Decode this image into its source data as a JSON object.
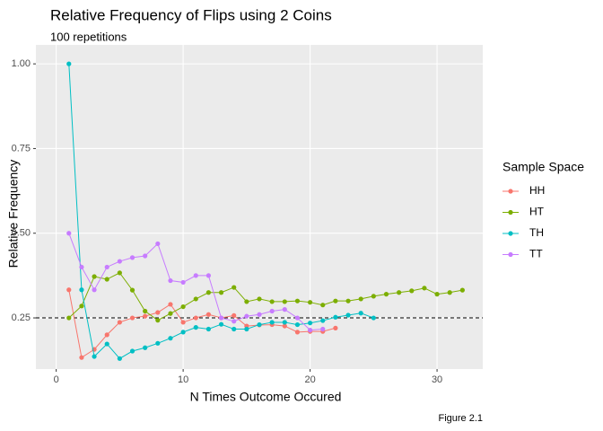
{
  "chart_data": {
    "type": "line",
    "title": "Relative Frequency of Flips using 2 Coins",
    "subtitle": "100 repetitions",
    "x_label": "N Times Outcome Occured",
    "y_label": "Relative Frequency",
    "caption": "Figure 2.1",
    "legend_title": "Sample Space",
    "legend": "right",
    "grid": true,
    "hline": 0.25,
    "xlim": [
      -1.6,
      33.6
    ],
    "ylim": [
      0.099,
      1.056
    ],
    "xticks": [
      0,
      10,
      20,
      30
    ],
    "yticks": [
      {
        "value": 0.25,
        "label": "0.25"
      },
      {
        "value": 0.5,
        "label": "0.50"
      },
      {
        "value": 0.75,
        "label": "0.75"
      },
      {
        "value": 1.0,
        "label": "1.00"
      }
    ],
    "series": [
      {
        "name": "HH",
        "color": "#F8766D",
        "x": [
          1,
          2,
          3,
          4,
          5,
          6,
          7,
          8,
          9,
          10,
          11,
          12,
          13,
          14,
          15,
          16,
          17,
          18,
          19,
          20,
          21,
          22
        ],
        "values": [
          0.333,
          0.133,
          0.157,
          0.2,
          0.237,
          0.25,
          0.255,
          0.266,
          0.29,
          0.237,
          0.25,
          0.26,
          0.25,
          0.257,
          0.226,
          0.229,
          0.23,
          0.226,
          0.208,
          0.21,
          0.21,
          0.22
        ]
      },
      {
        "name": "HT",
        "color": "#7CAE00",
        "x": [
          1,
          2,
          3,
          4,
          5,
          6,
          7,
          8,
          9,
          10,
          11,
          12,
          13,
          14,
          15,
          16,
          17,
          18,
          19,
          20,
          21,
          22,
          23,
          24,
          25,
          26,
          27,
          28,
          29,
          30,
          31,
          32
        ],
        "values": [
          0.25,
          0.285,
          0.372,
          0.364,
          0.383,
          0.332,
          0.27,
          0.243,
          0.263,
          0.283,
          0.306,
          0.325,
          0.325,
          0.34,
          0.298,
          0.306,
          0.298,
          0.298,
          0.3,
          0.296,
          0.288,
          0.3,
          0.3,
          0.306,
          0.314,
          0.32,
          0.325,
          0.33,
          0.338,
          0.32,
          0.325,
          0.332
        ]
      },
      {
        "name": "TH",
        "color": "#00BFC4",
        "x": [
          1,
          2,
          3,
          4,
          5,
          6,
          7,
          8,
          9,
          10,
          11,
          12,
          13,
          14,
          15,
          16,
          17,
          18,
          19,
          20,
          21,
          22,
          23,
          24,
          25
        ],
        "values": [
          1.0,
          0.333,
          0.136,
          0.173,
          0.13,
          0.152,
          0.162,
          0.175,
          0.19,
          0.208,
          0.222,
          0.217,
          0.231,
          0.217,
          0.217,
          0.23,
          0.237,
          0.237,
          0.23,
          0.235,
          0.242,
          0.252,
          0.258,
          0.264,
          0.25
        ]
      },
      {
        "name": "TT",
        "color": "#C77CFF",
        "x": [
          1,
          2,
          3,
          4,
          5,
          6,
          7,
          8,
          9,
          10,
          11,
          12,
          13,
          14,
          15,
          16,
          17,
          18,
          19,
          20,
          21
        ],
        "values": [
          0.5,
          0.4,
          0.333,
          0.4,
          0.417,
          0.428,
          0.433,
          0.469,
          0.36,
          0.355,
          0.375,
          0.375,
          0.25,
          0.24,
          0.255,
          0.26,
          0.27,
          0.275,
          0.25,
          0.214,
          0.217
        ]
      }
    ]
  }
}
